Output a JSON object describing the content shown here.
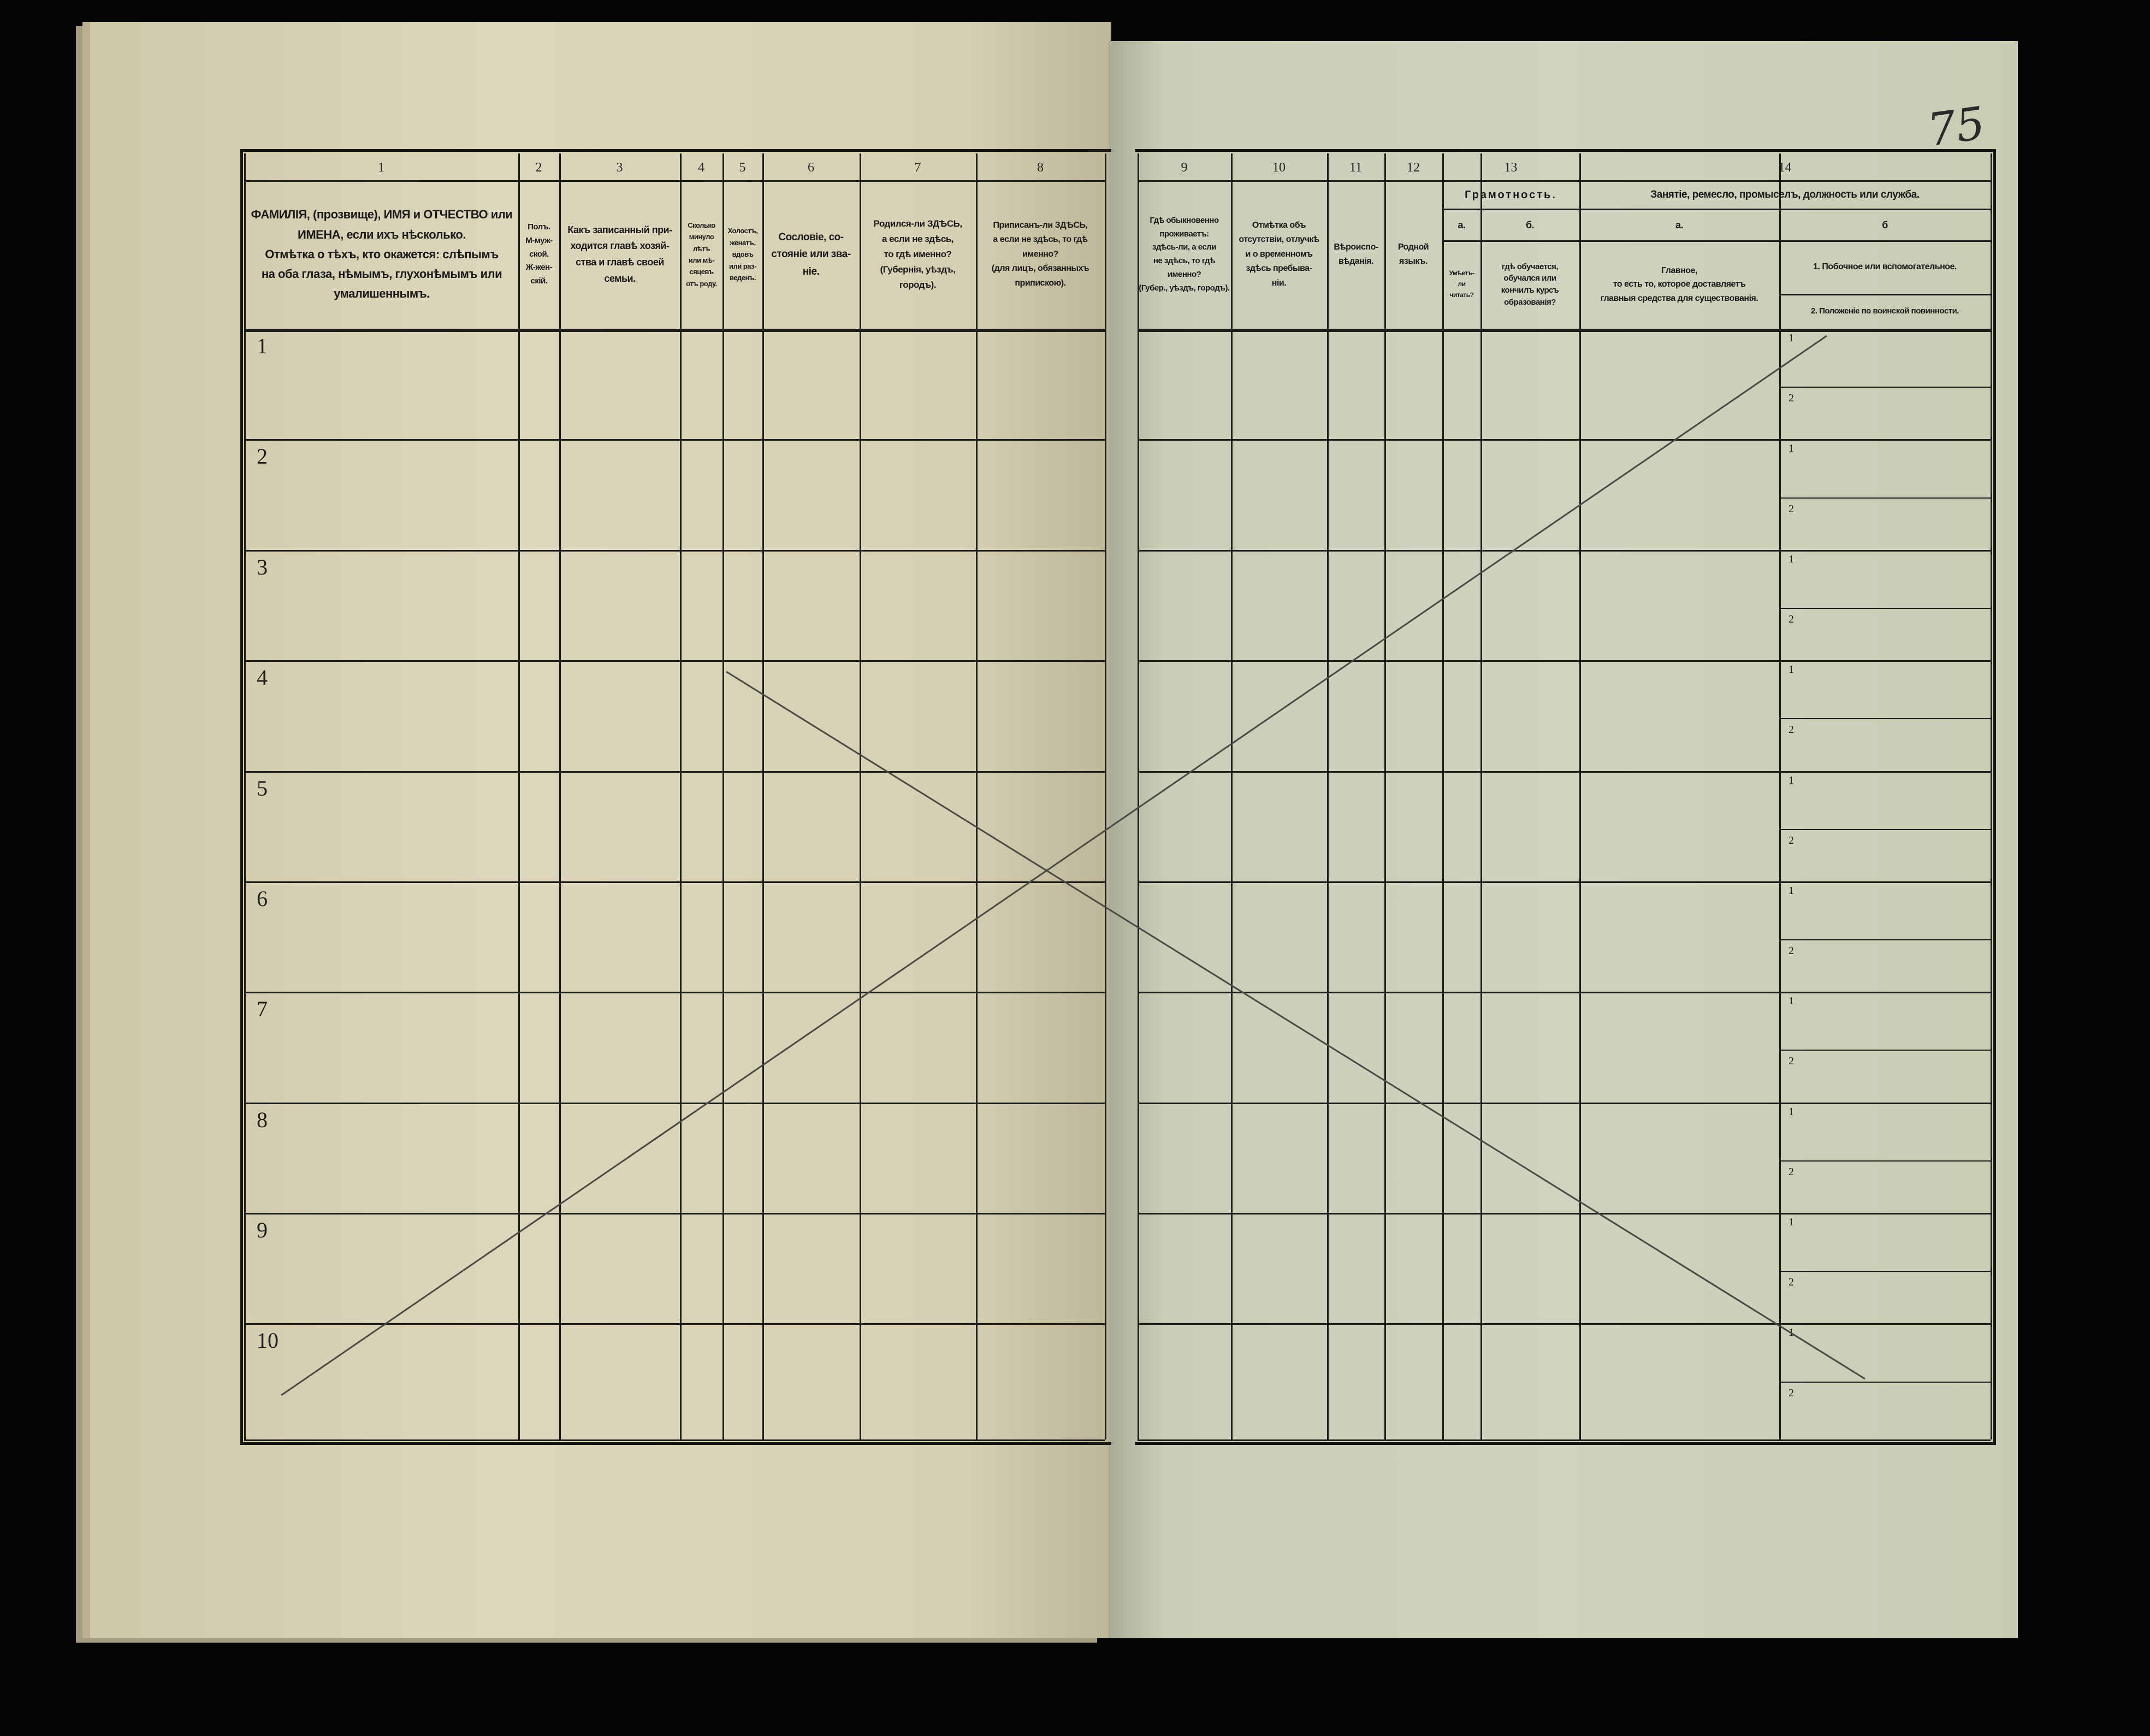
{
  "page_number_handwritten": "75",
  "columns": [
    {
      "num": "1",
      "text": "ФАМИЛІЯ, (прозвище), ИМЯ и ОТЧЕСТВО или\nИМЕНА, если ихъ нѣсколько.\nОтмѣтка о тѣхъ, кто окажется: слѣпымъ\nна оба глаза, нѣмымъ, глухонѣмымъ или\nумалишеннымъ."
    },
    {
      "num": "2",
      "text": "Полъ.\nМ-муж-\nской.\nЖ-жен-\nскій."
    },
    {
      "num": "3",
      "text": "Какъ записанный при-\nходится главѣ хозяй-\nства и главѣ своей\nсемьи."
    },
    {
      "num": "4",
      "text": "Сколько\nминуло\nлѣтъ\nили мѣ-\nсяцевъ\nотъ роду."
    },
    {
      "num": "5",
      "text": "Холостъ,\nженатъ,\nвдовъ\nили раз-\nведенъ."
    },
    {
      "num": "6",
      "text": "Сословіе, со-\nстояніе или зва-\nніе."
    },
    {
      "num": "7",
      "text": "Родился-ли ЗДѢСЬ,\nа если не здѣсь,\nто гдѣ именно?\n(Губернія, уѣздъ, городъ)."
    },
    {
      "num": "8",
      "text": "Приписанъ-ли ЗДѢСЬ,\nа если не здѣсь, то гдѣ\nименно?\n(для лицъ, обязанныхъ\nприпискою)."
    },
    {
      "num": "9",
      "text": "Гдѣ обыкновенно\nпроживаетъ:\nздѣсь-ли, а если\nне здѣсь, то гдѣ\nименно?\n(Губер., уѣздъ, городъ)."
    },
    {
      "num": "10",
      "text": "Отмѣтка объ\nотсутствіи, отлучкѣ\nи о временномъ\nздѣсь пребыва-\nніи."
    },
    {
      "num": "11",
      "text": "Вѣроиспо-\nвѣданія."
    },
    {
      "num": "12",
      "text": "Родной\nязыкъ."
    },
    {
      "num": "13",
      "group": "Грамотность.",
      "sub": [
        {
          "label": "а.",
          "text": "Умѣетъ-\nли\nчитать?"
        },
        {
          "label": "б.",
          "text": "гдѣ обучается,\nобучался или\nкончилъ курсъ\nобразованія?"
        }
      ]
    },
    {
      "num": "14",
      "group": "Занятіе, ремесло, промыселъ, должность или служба.",
      "sub": [
        {
          "label": "а.",
          "text": "Главное,\nто есть то, которое доставляетъ\nглавныя средства для существованія."
        },
        {
          "label": "б",
          "items": [
            "1. Побочное или вспомогательное.",
            "2. Положеніе по воинской повинности."
          ]
        }
      ]
    }
  ],
  "rows": [
    "1",
    "2",
    "3",
    "4",
    "5",
    "6",
    "7",
    "8",
    "9",
    "10"
  ],
  "sub_rows": [
    "1",
    "2"
  ],
  "colors": {
    "ink": "#1d1d1a",
    "left_paper": "#dcd6bc",
    "right_paper": "#cfd3bf",
    "background": "#050505"
  }
}
